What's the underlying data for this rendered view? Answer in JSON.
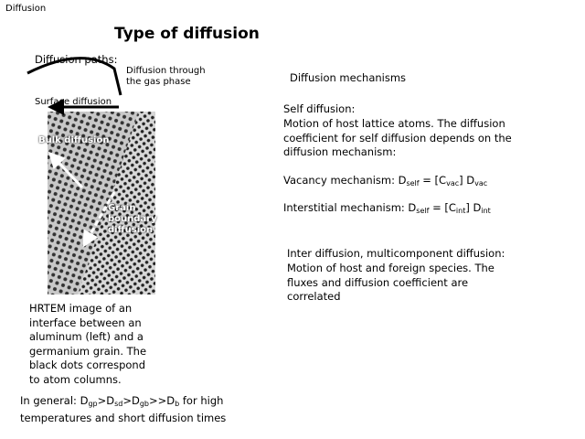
{
  "header": "Diffusion",
  "title": "Type of diffusion",
  "paths": {
    "heading": "Diffusion paths:",
    "gas": "Diffusion through the gas phase",
    "surface": "Surface diffusion",
    "bulk": "Bulk diffusion",
    "grain": "Grain boundary diffusion"
  },
  "caption": "HRTEM image of an interface between an aluminum (left) and a germanium grain. The black dots correspond to atom columns.",
  "general": {
    "parts": [
      "In general: D",
      "gp",
      ">D",
      "sd",
      ">D",
      "gb",
      ">>D",
      "b",
      " for high temperatures and short diffusion times"
    ]
  },
  "mechanisms": {
    "heading": "Diffusion mechanisms",
    "self_heading": "Self diffusion:",
    "self_text": "Motion of host lattice atoms. The diffusion coefficient for self diffusion depends on the diffusion mechanism:",
    "vacancy": {
      "parts": [
        "Vacancy mechanism: D",
        "self",
        " = [C",
        "vac",
        "] D",
        "vac"
      ]
    },
    "interstitial": {
      "parts": [
        "Interstitial mechanism: D",
        "self",
        " = [C",
        "int",
        "] D",
        "int"
      ]
    },
    "inter_heading": "Inter diffusion, multicomponent diffusion:",
    "inter_text": "Motion of host and foreign species. The fluxes and diffusion coefficient are correlated"
  }
}
